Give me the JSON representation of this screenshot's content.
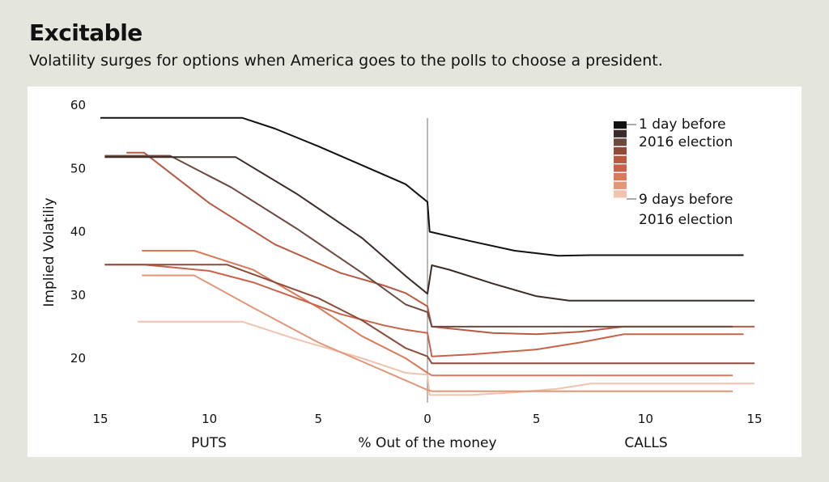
{
  "title": "Excitable",
  "subtitle": "Volatility surges for options when America goes to the polls to choose a president.",
  "colors": {
    "background": "#e4e5dc",
    "panel": "#ffffff"
  },
  "chart_data": {
    "type": "line",
    "ylabel": "Implied Volatiliy",
    "xlabel_center": "% Out of the money",
    "xlabel_left": "PUTS",
    "xlabel_right": "CALLS",
    "xlim": [
      -15,
      15
    ],
    "ylim": [
      14,
      60
    ],
    "x_ticks": [
      -15,
      -10,
      -5,
      0,
      5,
      10,
      15
    ],
    "x_tick_labels": [
      "15",
      "10",
      "5",
      "0",
      "5",
      "10",
      "15"
    ],
    "y_ticks": [
      20,
      30,
      40,
      50,
      60
    ],
    "y_tick_labels": [
      "20",
      "30",
      "40",
      "50",
      "60"
    ],
    "grid": false,
    "legend": {
      "placement": "top-right",
      "top_label_1": "1 day before",
      "top_label_2": "2016 election",
      "bottom_label_1": "9 days before",
      "bottom_label_2": "2016 election"
    },
    "series": [
      {
        "color": "#111111",
        "points": [
          [
            -15,
            58
          ],
          [
            -8.5,
            58
          ],
          [
            -7,
            56.3
          ],
          [
            -5,
            53.5
          ],
          [
            -3,
            50.5
          ],
          [
            -1,
            47.5
          ],
          [
            0,
            44.7
          ],
          [
            0.1,
            40
          ],
          [
            2,
            38.5
          ],
          [
            4,
            37
          ],
          [
            6,
            36.2
          ],
          [
            7.5,
            36.3
          ],
          [
            14.5,
            36.3
          ]
        ]
      },
      {
        "color": "#3b2c27",
        "points": [
          [
            -14.8,
            51.8
          ],
          [
            -8.8,
            51.8
          ],
          [
            -6,
            46
          ],
          [
            -3,
            39
          ],
          [
            -1,
            33
          ],
          [
            0,
            30.2
          ],
          [
            0.2,
            34.7
          ],
          [
            1,
            34
          ],
          [
            3,
            31.8
          ],
          [
            5,
            29.8
          ],
          [
            6.5,
            29.1
          ],
          [
            15,
            29.1
          ]
        ]
      },
      {
        "color": "#6e4a3e",
        "points": [
          [
            -14.8,
            52
          ],
          [
            -11.8,
            52
          ],
          [
            -9,
            47
          ],
          [
            -6,
            40.5
          ],
          [
            -3,
            33.5
          ],
          [
            -1,
            28.5
          ],
          [
            0,
            27.3
          ],
          [
            0.2,
            25
          ],
          [
            5,
            25
          ],
          [
            14,
            25
          ]
        ]
      },
      {
        "color": "#8f4a3a",
        "points": [
          [
            -14.8,
            34.8
          ],
          [
            -9.2,
            34.8
          ],
          [
            -7,
            32
          ],
          [
            -5,
            29.5
          ],
          [
            -3,
            26
          ],
          [
            -1,
            21.6
          ],
          [
            0,
            20.3
          ],
          [
            0.2,
            19.2
          ],
          [
            5,
            19.2
          ],
          [
            15,
            19.2
          ]
        ]
      },
      {
        "color": "#b85a41",
        "points": [
          [
            -13.8,
            52.5
          ],
          [
            -13,
            52.5
          ],
          [
            -10,
            44.5
          ],
          [
            -7,
            38
          ],
          [
            -4,
            33.5
          ],
          [
            -2,
            31.5
          ],
          [
            -1,
            30.3
          ],
          [
            0,
            28.2
          ],
          [
            0.2,
            25
          ],
          [
            3,
            24
          ],
          [
            5,
            23.8
          ],
          [
            7,
            24.2
          ],
          [
            9,
            25
          ],
          [
            15,
            25
          ]
        ]
      },
      {
        "color": "#c8634a",
        "points": [
          [
            -14.8,
            34.8
          ],
          [
            -13,
            34.8
          ],
          [
            -10,
            33.8
          ],
          [
            -8,
            32
          ],
          [
            -6,
            29.5
          ],
          [
            -4,
            27
          ],
          [
            -2,
            25.2
          ],
          [
            -1,
            24.5
          ],
          [
            0,
            24
          ],
          [
            0.2,
            20.3
          ],
          [
            2,
            20.6
          ],
          [
            5,
            21.4
          ],
          [
            7,
            22.5
          ],
          [
            9,
            23.8
          ],
          [
            14.5,
            23.8
          ]
        ]
      },
      {
        "color": "#d97a5a",
        "points": [
          [
            -13.1,
            37
          ],
          [
            -10.7,
            37
          ],
          [
            -8,
            34
          ],
          [
            -5,
            28
          ],
          [
            -3,
            23.5
          ],
          [
            -1,
            20
          ],
          [
            0,
            17.7
          ],
          [
            0.2,
            17.3
          ],
          [
            14,
            17.3
          ]
        ]
      },
      {
        "color": "#e39677",
        "points": [
          [
            -13.1,
            33.1
          ],
          [
            -10.7,
            33.1
          ],
          [
            -8,
            28
          ],
          [
            -5,
            22.5
          ],
          [
            -3,
            19.5
          ],
          [
            -1,
            16.5
          ],
          [
            0,
            15
          ],
          [
            0.2,
            14.8
          ],
          [
            14,
            14.8
          ]
        ]
      },
      {
        "color": "#f0c3ac",
        "points": [
          [
            -13.3,
            25.8
          ],
          [
            -8.5,
            25.8
          ],
          [
            -6,
            23
          ],
          [
            -3,
            20
          ],
          [
            -1,
            17.7
          ],
          [
            0,
            17.4
          ],
          [
            0.1,
            14.2
          ],
          [
            2,
            14.2
          ],
          [
            4,
            14.6
          ],
          [
            6,
            15.2
          ],
          [
            7.5,
            16
          ],
          [
            15,
            16
          ]
        ]
      }
    ]
  }
}
